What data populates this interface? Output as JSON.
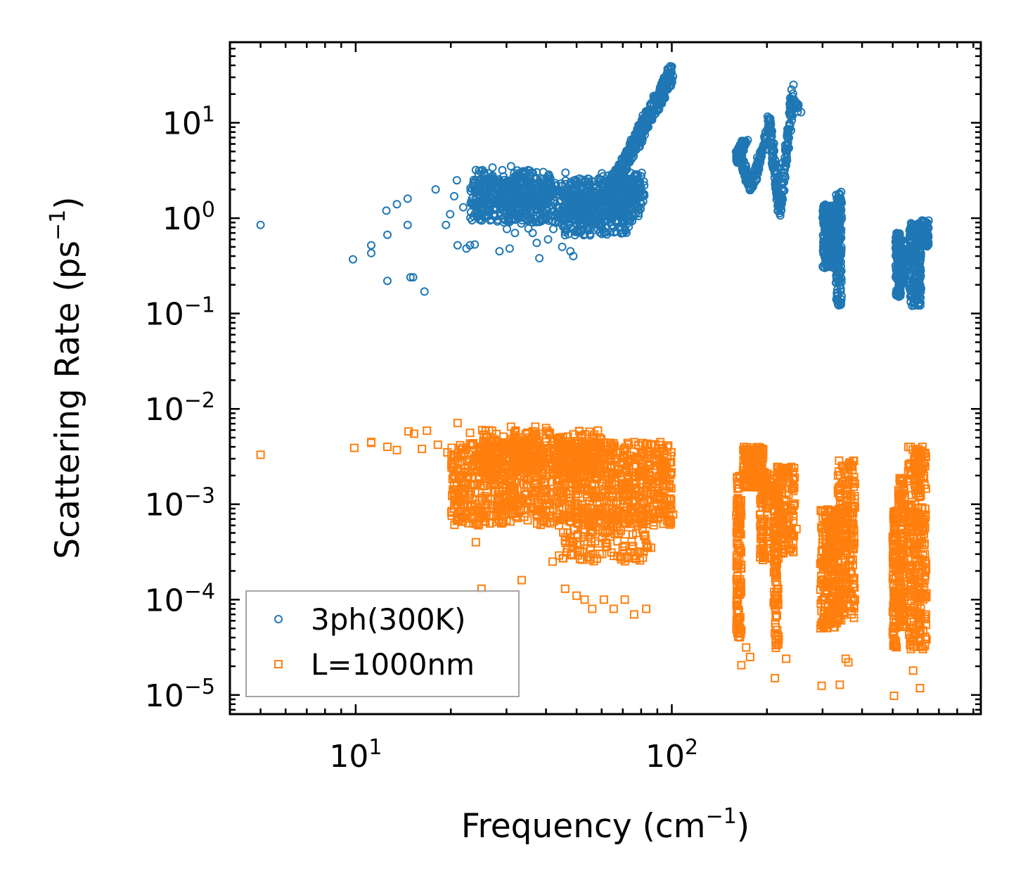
{
  "chart_data": {
    "type": "scatter",
    "title": "",
    "xlabel": "Frequency (cm",
    "xlabel_sup": "−1",
    "xlabel_tail": ")",
    "ylabel": "Scattering Rate (ps",
    "ylabel_sup": "−1",
    "ylabel_tail": ")",
    "xscale": "log",
    "yscale": "log",
    "xlim": [
      4.0,
      950.0
    ],
    "ylim": [
      6.3e-06,
      70.0
    ],
    "x_ticks": [
      {
        "value": 10,
        "base": "10",
        "exp": "1"
      },
      {
        "value": 100,
        "base": "10",
        "exp": "2"
      }
    ],
    "y_ticks": [
      {
        "value": 10,
        "base": "10",
        "exp": "1"
      },
      {
        "value": 1,
        "base": "10",
        "exp": "0"
      },
      {
        "value": 0.1,
        "base": "10",
        "exp": "−1"
      },
      {
        "value": 0.01,
        "base": "10",
        "exp": "−2"
      },
      {
        "value": 0.001,
        "base": "10",
        "exp": "−3"
      },
      {
        "value": 0.0001,
        "base": "10",
        "exp": "−4"
      },
      {
        "value": 1e-05,
        "base": "10",
        "exp": "−5"
      }
    ],
    "grid": false,
    "legend_position": "bottom-left",
    "series": [
      {
        "name": "3ph(300K)",
        "marker": "circle",
        "color": "#1f77b4",
        "points": [
          [
            5.0,
            0.85
          ],
          [
            9.8,
            0.37
          ],
          [
            11.2,
            0.52
          ],
          [
            11.2,
            0.43
          ],
          [
            12.5,
            1.2
          ],
          [
            12.6,
            0.67
          ],
          [
            12.6,
            0.22
          ],
          [
            13.5,
            1.4
          ],
          [
            14.6,
            1.6
          ],
          [
            14.6,
            0.85
          ],
          [
            14.9,
            0.24
          ],
          [
            15.2,
            0.24
          ],
          [
            16.5,
            0.17
          ],
          [
            17.9,
            2.0
          ],
          [
            19.3,
            0.85
          ],
          [
            19.9,
            1.1
          ],
          [
            20.5,
            1.7
          ],
          [
            20.9,
            2.5
          ],
          [
            21.0,
            0.52
          ],
          [
            21.9,
            1.3
          ],
          [
            22.4,
            0.48
          ],
          [
            23.0,
            0.52
          ],
          [
            23.8,
            0.53
          ],
          [
            24.0,
            3.2
          ],
          [
            24.6,
            0.97
          ],
          [
            25.5,
            3.0
          ],
          [
            26.0,
            1.2
          ],
          [
            27.1,
            3.4
          ],
          [
            28.5,
            0.45
          ],
          [
            29.2,
            1.0
          ],
          [
            30.1,
            0.77
          ],
          [
            30.7,
            0.48
          ],
          [
            31.0,
            3.5
          ],
          [
            31.9,
            0.7
          ],
          [
            33.4,
            0.88
          ],
          [
            34.0,
            3.0
          ],
          [
            35.2,
            0.78
          ],
          [
            36.3,
            0.7
          ],
          [
            37.4,
            0.55
          ],
          [
            38.1,
            0.38
          ],
          [
            39.8,
            1.0
          ],
          [
            40.6,
            0.6
          ],
          [
            42.2,
            0.77
          ],
          [
            43.7,
            0.9
          ],
          [
            45.0,
            0.5
          ],
          [
            46.1,
            3.0
          ],
          [
            47.1,
            0.68
          ],
          [
            47.8,
            0.45
          ],
          [
            48.8,
            0.4
          ],
          [
            51.0,
            2.6
          ],
          [
            55.0,
            0.75
          ],
          [
            60.0,
            0.8
          ],
          [
            65.5,
            0.8
          ],
          [
            70.0,
            0.9
          ]
        ],
        "bands": [
          {
            "x": [
              23.0,
              80.0
            ],
            "y": [
              0.9,
              2.6
            ],
            "n": 700
          },
          {
            "x": [
              24.0,
              42.0
            ],
            "y": [
              1.2,
              3.2
            ],
            "n": 200
          },
          {
            "x": [
              45.0,
              75.0
            ],
            "y": [
              0.65,
              1.8
            ],
            "n": 220
          },
          {
            "x": [
              60.0,
              82.0
            ],
            "y": [
              1.4,
              3.0
            ],
            "n": 120
          },
          {
            "x": [
              160.0,
              163.0
            ],
            "y": [
              3.8,
              5.0
            ],
            "n": 30
          },
          {
            "x": [
              300.0,
              340.0
            ],
            "y": [
              0.3,
              1.4
            ],
            "n": 360
          },
          {
            "x": [
              330.0,
              345.0
            ],
            "y": [
              0.12,
              1.9
            ],
            "n": 140
          },
          {
            "x": [
              510.0,
              530.0
            ],
            "y": [
              0.15,
              0.7
            ],
            "n": 130
          },
          {
            "x": [
              530.0,
              545.0
            ],
            "y": [
              0.2,
              0.6
            ],
            "n": 90
          },
          {
            "x": [
              565.0,
              615.0
            ],
            "y": [
              0.12,
              0.9
            ],
            "n": 220
          },
          {
            "x": [
              615.0,
              650.0
            ],
            "y": [
              0.5,
              0.95
            ],
            "n": 90
          }
        ],
        "curves": [
          {
            "from": [
              62.0,
              1.6
            ],
            "to": [
              100.0,
              33.0
            ],
            "n": 420,
            "spread": 0.11
          },
          {
            "from": [
              160.0,
              4.6
            ],
            "to": [
              172.0,
              6.5
            ],
            "n": 50,
            "spread": 0.05
          },
          {
            "from": [
              165.0,
              4.5
            ],
            "to": [
              178.0,
              2.0
            ],
            "n": 70,
            "spread": 0.05
          },
          {
            "from": [
              178.0,
              2.0
            ],
            "to": [
              205.0,
              10.0
            ],
            "n": 90,
            "spread": 0.06
          },
          {
            "from": [
              203.0,
              11.0
            ],
            "to": [
              220.0,
              1.1
            ],
            "n": 110,
            "spread": 0.07
          },
          {
            "from": [
              220.0,
              1.2
            ],
            "to": [
              242.0,
              21.0
            ],
            "n": 110,
            "spread": 0.09
          },
          {
            "from": [
              238.0,
              16.0
            ],
            "to": [
              255.0,
              14.0
            ],
            "n": 20,
            "spread": 0.04
          }
        ]
      },
      {
        "name": "L=1000nm",
        "marker": "square",
        "color": "#ff7f0e",
        "points": [
          [
            5.0,
            0.0033
          ],
          [
            9.9,
            0.0039
          ],
          [
            11.2,
            0.0045
          ],
          [
            11.2,
            0.0044
          ],
          [
            12.6,
            0.004
          ],
          [
            13.5,
            0.0037
          ],
          [
            14.7,
            0.0058
          ],
          [
            15.3,
            0.0055
          ],
          [
            16.2,
            0.0038
          ],
          [
            16.8,
            0.0059
          ],
          [
            18.2,
            0.0042
          ],
          [
            19.5,
            0.0035
          ],
          [
            20.5,
            0.0032
          ],
          [
            21.0,
            0.0071
          ],
          [
            21.2,
            0.00068
          ],
          [
            23.0,
            0.0056
          ],
          [
            24.0,
            0.0004
          ],
          [
            25.0,
            0.00013
          ],
          [
            27.0,
            0.0059
          ],
          [
            28.0,
            0.00089
          ],
          [
            30.0,
            0.00068
          ],
          [
            31.0,
            0.0065
          ],
          [
            33.5,
            0.00016
          ],
          [
            35.0,
            0.00068
          ],
          [
            37.0,
            0.0065
          ],
          [
            40.0,
            0.0063
          ],
          [
            42.0,
            0.00025
          ],
          [
            44.0,
            0.00029
          ],
          [
            46.0,
            0.00013
          ],
          [
            48.0,
            0.0003
          ],
          [
            50.0,
            0.00011
          ],
          [
            53.0,
            0.0001
          ],
          [
            56.0,
            8e-05
          ],
          [
            61.0,
            0.0001
          ],
          [
            65.5,
            8e-05
          ],
          [
            71.0,
            0.0001
          ],
          [
            76.0,
            7e-05
          ],
          [
            83.0,
            8e-05
          ],
          [
            86.0,
            0.00035
          ],
          [
            98.0,
            0.00075
          ],
          [
            101.0,
            0.00078
          ],
          [
            166.0,
            2.05e-05
          ],
          [
            172.0,
            3.15e-05
          ],
          [
            177.0,
            2.5e-05
          ],
          [
            212.0,
            1.5e-05
          ],
          [
            230.0,
            2.4e-05
          ],
          [
            248.0,
            0.00055
          ],
          [
            298.0,
            1.25e-05
          ],
          [
            340.0,
            1.28e-05
          ],
          [
            355.0,
            2.4e-05
          ],
          [
            362.0,
            2.2e-05
          ],
          [
            505.0,
            9.8e-06
          ],
          [
            580.0,
            1.8e-05
          ],
          [
            610.0,
            1.18e-05
          ]
        ],
        "bands": [
          {
            "x": [
              20.0,
              100.0
            ],
            "y": [
              0.0006,
              0.0045
            ],
            "n": 1200
          },
          {
            "x": [
              25.0,
              60.0
            ],
            "y": [
              0.002,
              0.006
            ],
            "n": 300
          },
          {
            "x": [
              45.0,
              85.0
            ],
            "y": [
              0.00025,
              0.0009
            ],
            "n": 160
          },
          {
            "x": [
              160.0,
              166.0
            ],
            "y": [
              4e-05,
              0.002
            ],
            "n": 120
          },
          {
            "x": [
              168.0,
              195.0
            ],
            "y": [
              0.0015,
              0.004
            ],
            "n": 200
          },
          {
            "x": [
              190.0,
              205.0
            ],
            "y": [
              0.00025,
              0.0022
            ],
            "n": 90
          },
          {
            "x": [
              210.0,
              218.0
            ],
            "y": [
              3e-05,
              0.002
            ],
            "n": 130
          },
          {
            "x": [
              215.0,
              245.0
            ],
            "y": [
              0.0003,
              0.0025
            ],
            "n": 120
          },
          {
            "x": [
              295.0,
              340.0
            ],
            "y": [
              5e-05,
              0.0009
            ],
            "n": 260
          },
          {
            "x": [
              335.0,
              380.0
            ],
            "y": [
              6e-05,
              0.003
            ],
            "n": 230
          },
          {
            "x": [
              500.0,
              515.0
            ],
            "y": [
              3e-05,
              0.0009
            ],
            "n": 120
          },
          {
            "x": [
              520.0,
              545.0
            ],
            "y": [
              5e-05,
              0.002
            ],
            "n": 140
          },
          {
            "x": [
              560.0,
              640.0
            ],
            "y": [
              3e-05,
              0.004
            ],
            "n": 280
          }
        ],
        "curves": []
      }
    ]
  }
}
